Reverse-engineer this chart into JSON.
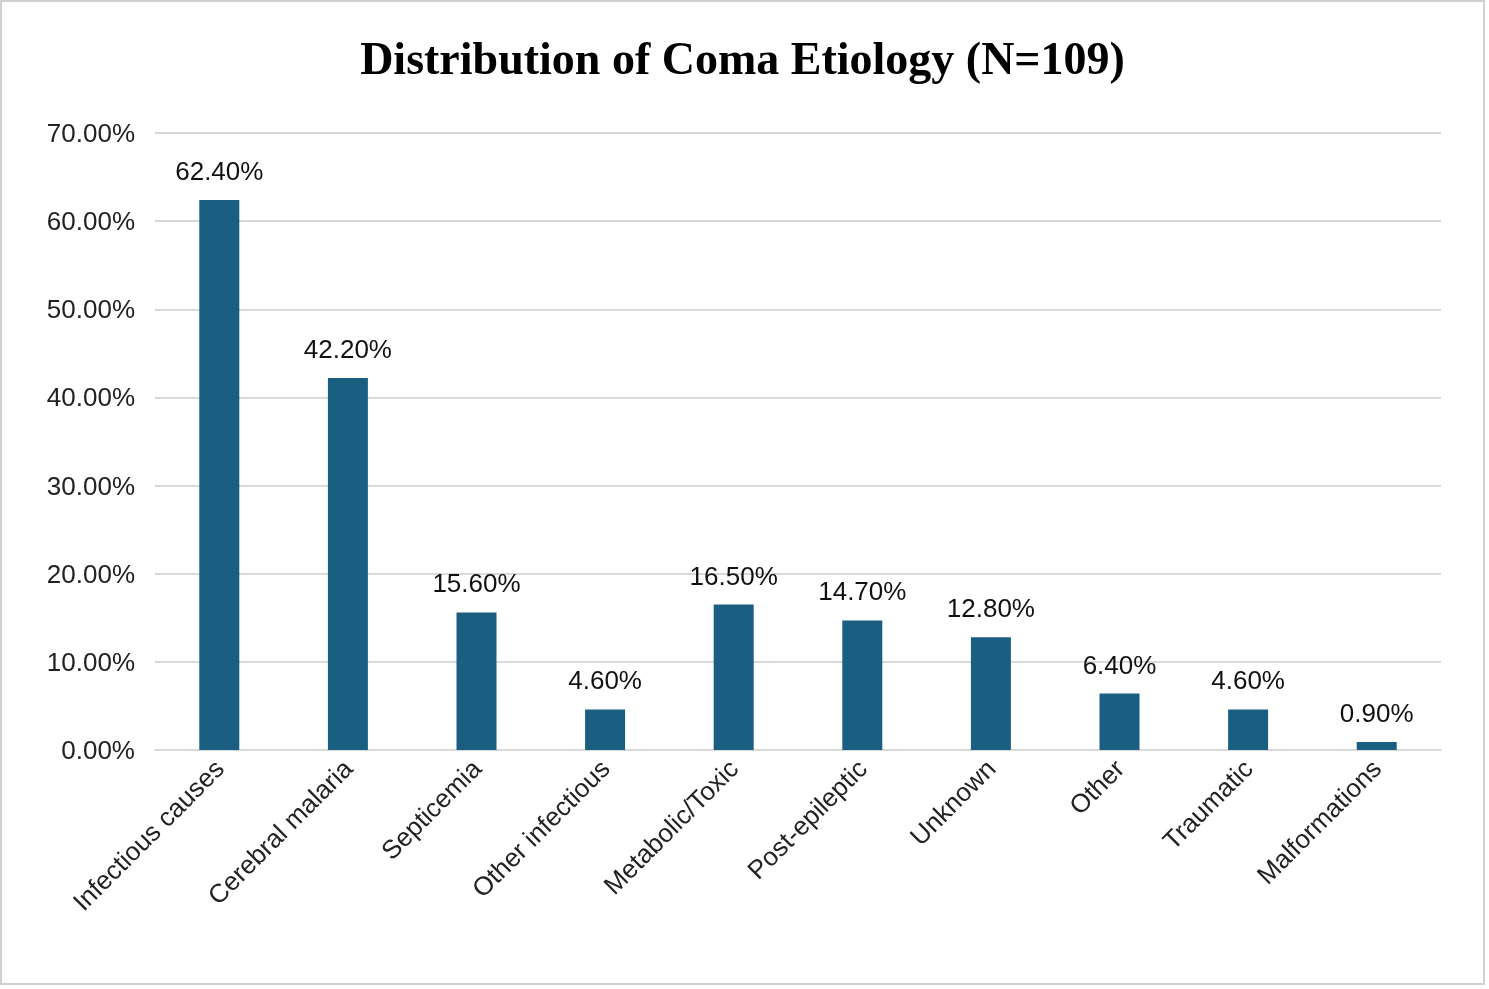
{
  "chart_data": {
    "type": "bar",
    "title": "Distribution of Coma Etiology (N=109)",
    "categories": [
      "Infectious causes",
      "Cerebral malaria",
      "Septicemia",
      "Other infectious",
      "Metabolic/Toxic",
      "Post-epileptic",
      "Unknown",
      "Other",
      "Traumatic",
      "Malformations"
    ],
    "values": [
      62.4,
      42.2,
      15.6,
      4.6,
      16.5,
      14.7,
      12.8,
      6.4,
      4.6,
      0.9
    ],
    "value_labels": [
      "62.40%",
      "42.20%",
      "15.60%",
      "4.60%",
      "16.50%",
      "14.70%",
      "12.80%",
      "6.40%",
      "4.60%",
      "0.90%"
    ],
    "color": "#1a5f82",
    "ylim": [
      0,
      70
    ],
    "yticks": [
      {
        "value": 0,
        "label": "0.00%"
      },
      {
        "value": 10,
        "label": "10.00%"
      },
      {
        "value": 20,
        "label": "20.00%"
      },
      {
        "value": 30,
        "label": "30.00%"
      },
      {
        "value": 40,
        "label": "40.00%"
      },
      {
        "value": 50,
        "label": "50.00%"
      },
      {
        "value": 60,
        "label": "60.00%"
      },
      {
        "value": 70,
        "label": "70.00%"
      }
    ],
    "grid": "y"
  }
}
